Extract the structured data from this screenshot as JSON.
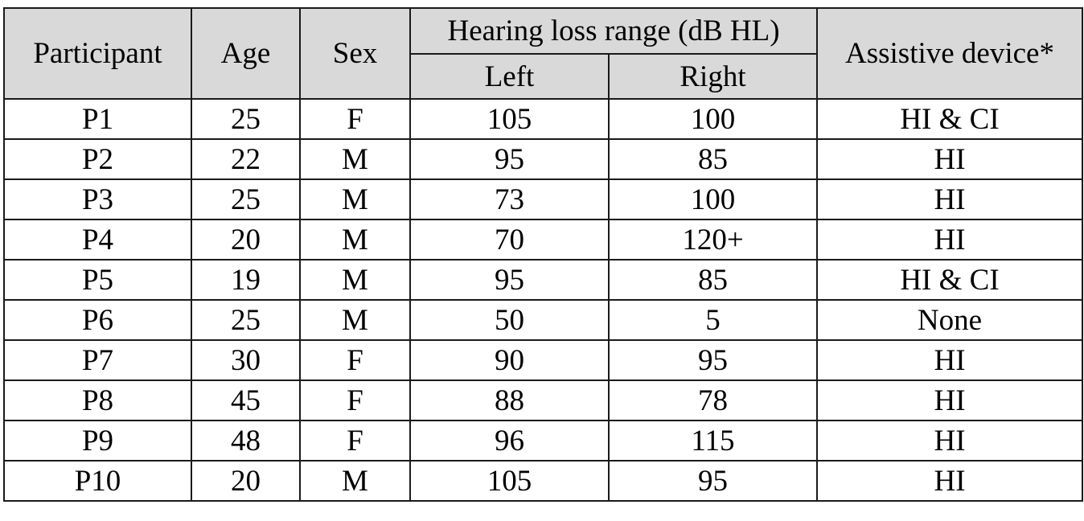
{
  "table": {
    "headers": {
      "participant": "Participant",
      "age": "Age",
      "sex": "Sex",
      "hearing_loss": "Hearing loss range (dB HL)",
      "left": "Left",
      "right": "Right",
      "device": "Assistive device*"
    },
    "rows": [
      [
        "P1",
        "25",
        "F",
        "105",
        "100",
        "HI & CI"
      ],
      [
        "P2",
        "22",
        "M",
        "95",
        "85",
        "HI"
      ],
      [
        "P3",
        "25",
        "M",
        "73",
        "100",
        "HI"
      ],
      [
        "P4",
        "20",
        "M",
        "70",
        "120+",
        "HI"
      ],
      [
        "P5",
        "19",
        "M",
        "95",
        "85",
        "HI & CI"
      ],
      [
        "P6",
        "25",
        "M",
        "50",
        "5",
        "None"
      ],
      [
        "P7",
        "30",
        "F",
        "90",
        "95",
        "HI"
      ],
      [
        "P8",
        "45",
        "F",
        "88",
        "78",
        "HI"
      ],
      [
        "P9",
        "48",
        "F",
        "96",
        "115",
        "HI"
      ],
      [
        "P10",
        "20",
        "M",
        "105",
        "95",
        "HI"
      ]
    ]
  }
}
